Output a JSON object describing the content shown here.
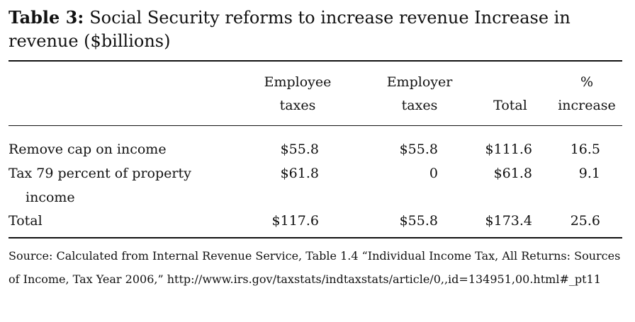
{
  "caption": {
    "label": "Table 3:",
    "text": "Social Security reforms to increase revenue Increase in revenue ($billions)"
  },
  "table": {
    "headers": [
      {
        "line1": "Employee",
        "line2": "taxes"
      },
      {
        "line1": "Employer",
        "line2": "taxes"
      },
      {
        "line1": "",
        "line2": "Total"
      },
      {
        "line1": "%",
        "line2": "increase"
      }
    ],
    "rows": [
      {
        "label_line1": "Remove cap on income",
        "label_line2": "",
        "cells": [
          "$55.8",
          "$55.8",
          "$111.6",
          "16.5"
        ]
      },
      {
        "label_line1": "Tax 79 percent of property",
        "label_line2": "income",
        "cells": [
          "$61.8",
          "0",
          "$61.8",
          "9.1"
        ]
      },
      {
        "label_line1": "Total",
        "label_line2": "",
        "cells": [
          "$117.6",
          "$55.8",
          "$173.4",
          "25.6"
        ]
      }
    ]
  },
  "source_note": "Source: Calculated from Internal Revenue Service, Table 1.4 “Individual Income Tax, All Returns: Sources of Income, Tax Year 2006,” http://www.irs.gov/taxstats/indtaxstats/article/0,,id=134951,00.html#_pt11"
}
